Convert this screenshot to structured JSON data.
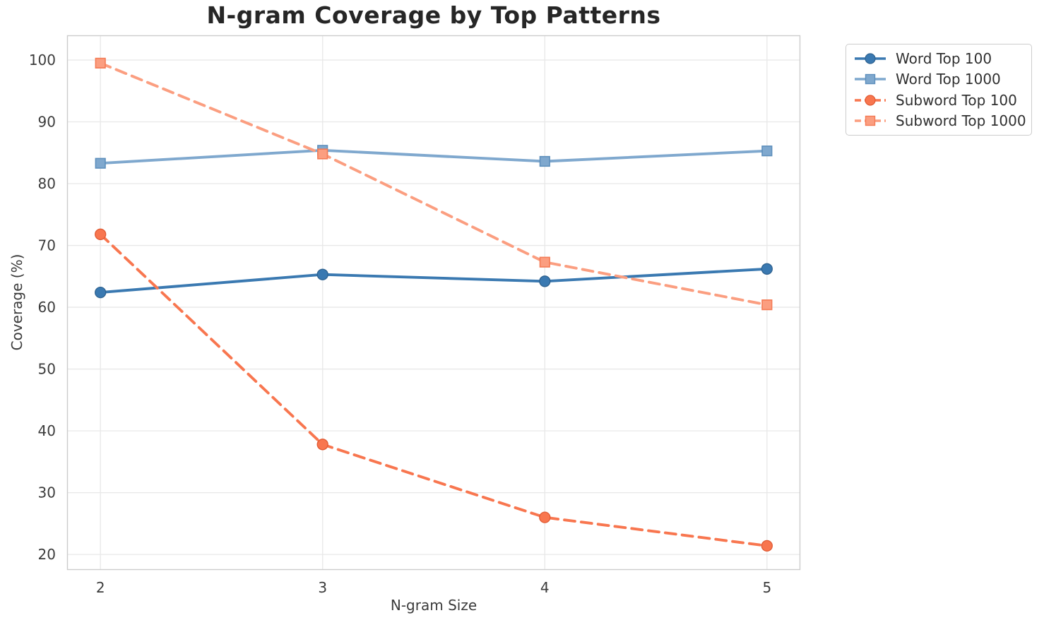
{
  "figure": {
    "title": "N-gram Coverage by Top Patterns"
  },
  "chart_data": {
    "type": "line",
    "title": "N-gram Coverage by Top Patterns",
    "xlabel": "N-gram Size",
    "ylabel": "Coverage (%)",
    "x": [
      2,
      3,
      4,
      5
    ],
    "xticks": [
      2,
      3,
      4,
      5
    ],
    "yticks": [
      20,
      30,
      40,
      50,
      60,
      70,
      80,
      90,
      100
    ],
    "xlim": [
      1.85,
      5.15
    ],
    "ylim": [
      17.5,
      104
    ],
    "grid": true,
    "legend": {
      "position": "outside-top-right",
      "entries": [
        "Word Top 100",
        "Word Top 1000",
        "Subword Top 100",
        "Subword Top 1000"
      ]
    },
    "series": [
      {
        "name": "Word Top 100",
        "values": [
          62.4,
          65.3,
          64.2,
          66.2
        ],
        "color": "#3A79B1",
        "marker_edge": "#2E6290",
        "marker": "circle",
        "line_style": "solid"
      },
      {
        "name": "Word Top 1000",
        "values": [
          83.3,
          85.4,
          83.6,
          85.3
        ],
        "color": "#7FA8CE",
        "marker_edge": "#5E8FBC",
        "marker": "square",
        "line_style": "solid"
      },
      {
        "name": "Subword Top 100",
        "values": [
          71.8,
          37.8,
          26.0,
          21.4
        ],
        "color": "#F8764F",
        "marker_edge": "#E05A33",
        "marker": "circle",
        "line_style": "dashed"
      },
      {
        "name": "Subword Top 1000",
        "values": [
          99.5,
          84.8,
          67.3,
          60.4
        ],
        "color": "#FB9E80",
        "marker_edge": "#F47B55",
        "marker": "square",
        "line_style": "dashed"
      }
    ]
  },
  "colors": {
    "background": "#FFFFFF",
    "grid": "#E8E8E8",
    "spine": "#CCCCCC",
    "tick_label": "#3B3B3B",
    "title": "#262626",
    "legend_border": "#CCCCCC",
    "legend_background": "#FFFFFF"
  }
}
